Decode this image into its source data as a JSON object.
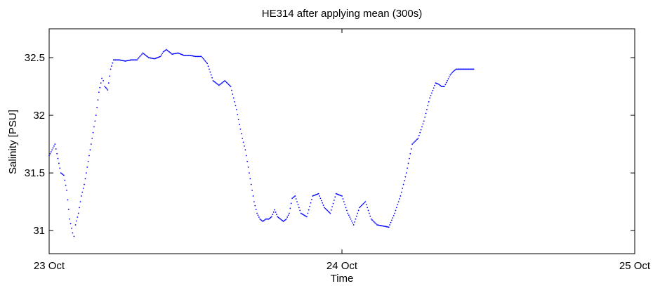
{
  "chart_data": {
    "type": "scatter",
    "title": "HE314 after applying mean (300s)",
    "xlabel": "Time",
    "ylabel": "Salinity [PSU]",
    "x_unit": "days since 23 Oct",
    "xlim": [
      0,
      2
    ],
    "ylim": [
      30.8,
      32.75
    ],
    "x_ticks": [
      0,
      1,
      2
    ],
    "x_tick_labels": [
      "23 Oct",
      "24 Oct",
      "25 Oct"
    ],
    "y_ticks": [
      31,
      31.5,
      32,
      32.5
    ],
    "y_tick_labels": [
      "31",
      "31.5",
      "32",
      "32.5"
    ],
    "grid": false,
    "marker_color": "#0000ff",
    "series": [
      {
        "name": "",
        "x": [
          0.0,
          0.02,
          0.04,
          0.05,
          0.06,
          0.07,
          0.08,
          0.085,
          0.09,
          0.1,
          0.11,
          0.12,
          0.13,
          0.14,
          0.15,
          0.16,
          0.17,
          0.18,
          0.185,
          0.19,
          0.2,
          0.21,
          0.22,
          0.23,
          0.24,
          0.26,
          0.28,
          0.3,
          0.32,
          0.34,
          0.36,
          0.38,
          0.39,
          0.4,
          0.42,
          0.44,
          0.46,
          0.48,
          0.5,
          0.52,
          0.54,
          0.56,
          0.58,
          0.6,
          0.62,
          0.64,
          0.65,
          0.66,
          0.67,
          0.68,
          0.69,
          0.7,
          0.71,
          0.72,
          0.73,
          0.74,
          0.75,
          0.76,
          0.77,
          0.78,
          0.79,
          0.8,
          0.81,
          0.82,
          0.83,
          0.84,
          0.86,
          0.88,
          0.9,
          0.92,
          0.94,
          0.96,
          0.98,
          1.0,
          1.02,
          1.04,
          1.06,
          1.08,
          1.1,
          1.12,
          1.14,
          1.16,
          1.18,
          1.2,
          1.22,
          1.24,
          1.26,
          1.28,
          1.3,
          1.32,
          1.33,
          1.34,
          1.35,
          1.36,
          1.37,
          1.38,
          1.39,
          1.4,
          1.41,
          1.42,
          1.43,
          1.44,
          1.45
        ],
        "y": [
          31.65,
          31.75,
          31.5,
          31.48,
          31.35,
          31.1,
          30.98,
          30.95,
          31.05,
          31.15,
          31.3,
          31.4,
          31.55,
          31.7,
          31.85,
          32.0,
          32.2,
          32.32,
          32.3,
          32.25,
          32.22,
          32.4,
          32.48,
          32.48,
          32.48,
          32.47,
          32.48,
          32.48,
          32.54,
          32.5,
          32.49,
          32.51,
          32.55,
          32.57,
          32.53,
          32.54,
          32.52,
          32.52,
          32.51,
          32.51,
          32.45,
          32.3,
          32.26,
          32.3,
          32.25,
          32.05,
          31.92,
          31.8,
          31.7,
          31.55,
          31.4,
          31.25,
          31.15,
          31.1,
          31.08,
          31.1,
          31.1,
          31.12,
          31.18,
          31.12,
          31.1,
          31.08,
          31.1,
          31.15,
          31.28,
          31.3,
          31.15,
          31.12,
          31.3,
          31.32,
          31.2,
          31.15,
          31.32,
          31.3,
          31.15,
          31.05,
          31.2,
          31.25,
          31.1,
          31.05,
          31.04,
          31.03,
          31.15,
          31.3,
          31.5,
          31.75,
          31.8,
          31.95,
          32.15,
          32.28,
          32.27,
          32.25,
          32.25,
          32.3,
          32.35,
          32.38,
          32.4,
          32.4,
          32.4,
          32.4,
          32.4,
          32.4,
          32.4
        ]
      }
    ]
  }
}
